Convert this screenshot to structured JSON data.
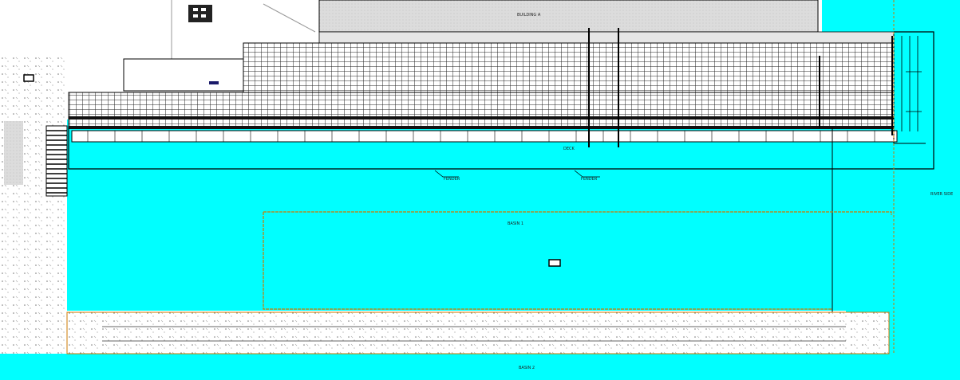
{
  "drawing": {
    "colors": {
      "water": "#00ffff",
      "pier_grid": "#222222",
      "outline": "#000000",
      "lot_line": "#cc7a00",
      "hatch_fill": "#d9d9d9",
      "paper": "#ffffff"
    },
    "labels": {
      "building_top": "BUILDING A",
      "basin_upper": "BASIN 1",
      "basin_lower": "BASIN 2",
      "right_edge": "RIVER SIDE",
      "deck_a": "DECK",
      "leader_1": "FENDER",
      "leader_2": "FENDER"
    }
  }
}
